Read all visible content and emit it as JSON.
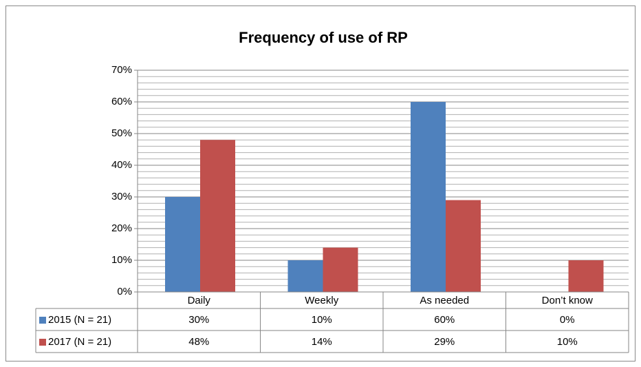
{
  "chart_data": {
    "type": "bar",
    "title": "Frequency of use of RP",
    "categories": [
      "Daily",
      "Weekly",
      "As needed",
      "Don’t know"
    ],
    "series": [
      {
        "name": "2015 (N = 21)",
        "color": "#4f81bd",
        "values": [
          30,
          10,
          60,
          0
        ],
        "value_labels": [
          "30%",
          "10%",
          "60%",
          "0%"
        ]
      },
      {
        "name": "2017 (N = 21)",
        "color": "#c0504d",
        "values": [
          48,
          14,
          29,
          10
        ],
        "value_labels": [
          "48%",
          "14%",
          "29%",
          "10%"
        ]
      }
    ],
    "ylim": [
      0,
      70
    ],
    "yticks": [
      {
        "value": 0,
        "label": "0%"
      },
      {
        "value": 10,
        "label": "10%"
      },
      {
        "value": 20,
        "label": "20%"
      },
      {
        "value": 30,
        "label": "30%"
      },
      {
        "value": 40,
        "label": "40%"
      },
      {
        "value": 50,
        "label": "50%"
      },
      {
        "value": 60,
        "label": "60%"
      },
      {
        "value": 70,
        "label": "70%"
      }
    ],
    "grid": true,
    "minor_grid": true,
    "data_table": true
  }
}
